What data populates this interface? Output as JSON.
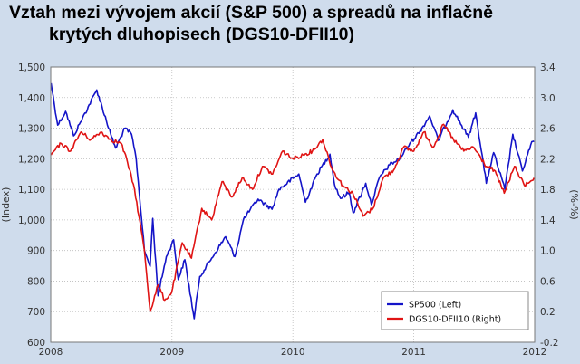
{
  "title_line1": "Vztah mezi vývojem akcií (S&P 500) a spreadů na inflačně",
  "title_line2": "krytých dluhopisech (DGS10-DFII10)",
  "colors": {
    "background": "#cfdcec",
    "plot_background": "#ffffff",
    "sp500": "#1414c8",
    "spread": "#e01414",
    "grid": "#bcbcbc"
  },
  "chart_data": {
    "type": "line",
    "xlabel": "",
    "ylabel_left": "(Index)",
    "ylabel_right": "(%-%)",
    "x_ticks": [
      "2008",
      "2009",
      "2010",
      "2011",
      "2012"
    ],
    "xlim": [
      "2008-01-01",
      "2012-01-01"
    ],
    "ylim_left": [
      600,
      1500
    ],
    "y_ticks_left": [
      "1,500",
      "1,400",
      "1,300",
      "1,200",
      "1,100",
      "1,000",
      "900",
      "800",
      "700",
      "600"
    ],
    "ylim_right": [
      -0.2,
      3.4
    ],
    "y_ticks_right": [
      "3.4",
      "3.0",
      "2.6",
      "2.2",
      "1.8",
      "1.4",
      "1.0",
      "0.6",
      "0.2",
      "-0.2"
    ],
    "grid": true,
    "legend_position": "bottom-right",
    "series": [
      {
        "name": "SP500 (Left)",
        "axis": "left",
        "x": [
          "2008-01-02",
          "2008-01-22",
          "2008-02-15",
          "2008-03-10",
          "2008-03-31",
          "2008-05-19",
          "2008-06-30",
          "2008-07-15",
          "2008-08-12",
          "2008-09-01",
          "2008-09-15",
          "2008-10-10",
          "2008-10-27",
          "2008-11-04",
          "2008-11-20",
          "2008-12-15",
          "2009-01-06",
          "2009-01-20",
          "2009-02-09",
          "2009-03-09",
          "2009-03-26",
          "2009-05-01",
          "2009-06-12",
          "2009-07-10",
          "2009-08-05",
          "2009-09-18",
          "2009-10-30",
          "2009-11-20",
          "2010-01-19",
          "2010-02-08",
          "2010-03-15",
          "2010-04-23",
          "2010-05-07",
          "2010-05-25",
          "2010-06-20",
          "2010-07-02",
          "2010-08-09",
          "2010-08-26",
          "2010-09-20",
          "2010-10-20",
          "2010-11-20",
          "2010-12-20",
          "2011-01-20",
          "2011-02-18",
          "2011-03-16",
          "2011-04-29",
          "2011-06-15",
          "2011-07-07",
          "2011-08-08",
          "2011-08-30",
          "2011-10-03",
          "2011-10-27",
          "2011-11-25",
          "2011-12-20",
          "2011-12-30"
        ],
        "values": [
          1447,
          1310,
          1355,
          1275,
          1320,
          1425,
          1280,
          1235,
          1300,
          1280,
          1200,
          900,
          848,
          1005,
          752,
          880,
          935,
          805,
          870,
          677,
          815,
          875,
          945,
          880,
          1002,
          1068,
          1035,
          1100,
          1150,
          1058,
          1150,
          1215,
          1115,
          1070,
          1090,
          1023,
          1120,
          1050,
          1140,
          1180,
          1200,
          1250,
          1290,
          1340,
          1260,
          1360,
          1270,
          1350,
          1120,
          1220,
          1100,
          1280,
          1160,
          1245,
          1258
        ]
      },
      {
        "name": "DGS10-DFII10 (Right)",
        "axis": "right",
        "x": [
          "2008-01-02",
          "2008-02-01",
          "2008-03-01",
          "2008-04-01",
          "2008-05-01",
          "2008-06-01",
          "2008-07-01",
          "2008-08-01",
          "2008-08-20",
          "2008-09-10",
          "2008-10-10",
          "2008-10-27",
          "2008-11-20",
          "2008-12-10",
          "2008-12-31",
          "2009-02-01",
          "2009-03-01",
          "2009-04-01",
          "2009-05-01",
          "2009-06-01",
          "2009-07-01",
          "2009-08-01",
          "2009-09-01",
          "2009-10-01",
          "2009-11-01",
          "2009-12-01",
          "2010-01-01",
          "2010-02-01",
          "2010-03-01",
          "2010-04-01",
          "2010-05-01",
          "2010-06-01",
          "2010-07-01",
          "2010-08-01",
          "2010-08-31",
          "2010-10-01",
          "2010-11-01",
          "2010-12-01",
          "2011-01-01",
          "2011-02-01",
          "2011-03-01",
          "2011-04-01",
          "2011-05-01",
          "2011-06-01",
          "2011-07-01",
          "2011-08-08",
          "2011-09-01",
          "2011-10-01",
          "2011-11-01",
          "2011-12-01",
          "2011-12-30"
        ],
        "values": [
          2.25,
          2.4,
          2.3,
          2.55,
          2.45,
          2.55,
          2.45,
          2.4,
          2.15,
          1.8,
          1.0,
          0.2,
          0.55,
          0.35,
          0.45,
          1.1,
          0.9,
          1.55,
          1.4,
          1.9,
          1.7,
          1.95,
          1.8,
          2.1,
          2.0,
          2.3,
          2.2,
          2.25,
          2.3,
          2.45,
          2.05,
          1.85,
          1.75,
          1.45,
          1.55,
          1.95,
          2.05,
          2.35,
          2.3,
          2.55,
          2.35,
          2.65,
          2.45,
          2.3,
          2.35,
          2.1,
          2.05,
          1.75,
          2.1,
          1.85,
          1.95
        ]
      }
    ]
  }
}
